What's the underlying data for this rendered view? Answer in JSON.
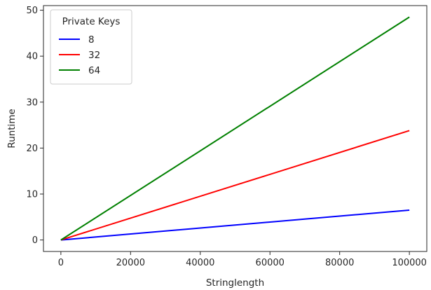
{
  "chart_data": {
    "type": "line",
    "xlabel": "Stringlength",
    "ylabel": "Runtime",
    "xlim": [
      -5000,
      105000
    ],
    "ylim": [
      -2.5,
      51
    ],
    "x_ticks": [
      0,
      20000,
      40000,
      60000,
      80000,
      100000
    ],
    "x_tick_labels": [
      "0",
      "20000",
      "40000",
      "60000",
      "80000",
      "100000"
    ],
    "y_ticks": [
      0,
      10,
      20,
      30,
      40,
      50
    ],
    "y_tick_labels": [
      "0",
      "10",
      "20",
      "30",
      "40",
      "50"
    ],
    "grid": false,
    "legend": {
      "title": "Private Keys",
      "placement": "top-left"
    },
    "series": [
      {
        "name": "8",
        "color": "#0000ff",
        "x": [
          0,
          100000
        ],
        "y": [
          0,
          6.5
        ]
      },
      {
        "name": "32",
        "color": "#ff0000",
        "x": [
          0,
          100000
        ],
        "y": [
          0,
          23.8
        ]
      },
      {
        "name": "64",
        "color": "#008000",
        "x": [
          0,
          100000
        ],
        "y": [
          0,
          48.5
        ]
      }
    ]
  }
}
